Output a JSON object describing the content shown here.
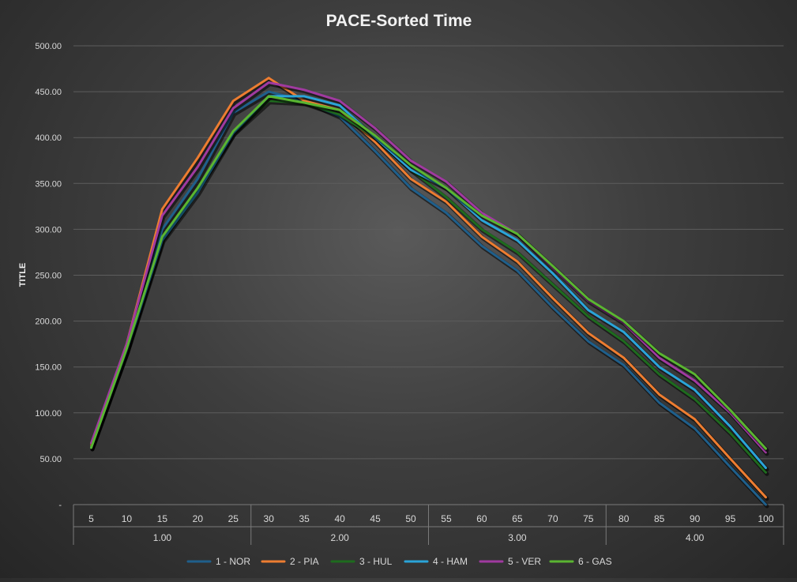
{
  "chart_data": {
    "type": "line",
    "title": "PACE-Sorted Time",
    "ylabel": "TITLE",
    "xlabel": "",
    "ylim": [
      0,
      500
    ],
    "yticks": [
      "-",
      "50.00",
      "100.00",
      "150.00",
      "200.00",
      "250.00",
      "300.00",
      "350.00",
      "400.00",
      "450.00",
      "500.00"
    ],
    "categories": [
      "5",
      "10",
      "15",
      "20",
      "25",
      "30",
      "35",
      "40",
      "45",
      "50",
      "55",
      "60",
      "65",
      "70",
      "75",
      "80",
      "85",
      "90",
      "95",
      "100"
    ],
    "groups": [
      {
        "label": "1.00",
        "span": 5
      },
      {
        "label": "2.00",
        "span": 5
      },
      {
        "label": "3.00",
        "span": 5
      },
      {
        "label": "4.00",
        "span": 5
      }
    ],
    "grid": true,
    "legend_position": "bottom",
    "series": [
      {
        "name": "1 - NOR",
        "color": "#1f5f8b",
        "values": [
          63,
          168,
          300,
          355,
          427,
          450,
          440,
          423,
          385,
          345,
          318,
          282,
          255,
          215,
          178,
          152,
          111,
          83,
          41,
          0
        ]
      },
      {
        "name": "2 - PIA",
        "color": "#ed7d31",
        "values": [
          65,
          175,
          322,
          378,
          440,
          465,
          440,
          430,
          395,
          355,
          330,
          292,
          265,
          225,
          187,
          160,
          120,
          93,
          50,
          8
        ]
      },
      {
        "name": "3 - HUL",
        "color": "#1e6b1e",
        "values": [
          62,
          168,
          290,
          345,
          405,
          440,
          438,
          425,
          400,
          365,
          335,
          300,
          275,
          240,
          205,
          178,
          142,
          115,
          78,
          35
        ]
      },
      {
        "name": "4 - HAM",
        "color": "#2aa4d8",
        "values": [
          62,
          168,
          288,
          340,
          405,
          445,
          445,
          435,
          400,
          365,
          345,
          310,
          288,
          252,
          212,
          188,
          150,
          125,
          85,
          40
        ]
      },
      {
        "name": "5 - VER",
        "color": "#a03aa0",
        "values": [
          67,
          175,
          315,
          368,
          432,
          460,
          452,
          440,
          410,
          375,
          352,
          318,
          295,
          258,
          222,
          198,
          160,
          135,
          100,
          57
        ]
      },
      {
        "name": "6 - GAS",
        "color": "#5ab531",
        "values": [
          62,
          170,
          292,
          345,
          407,
          445,
          438,
          430,
          402,
          370,
          345,
          315,
          295,
          260,
          224,
          200,
          165,
          142,
          103,
          61
        ]
      }
    ]
  }
}
